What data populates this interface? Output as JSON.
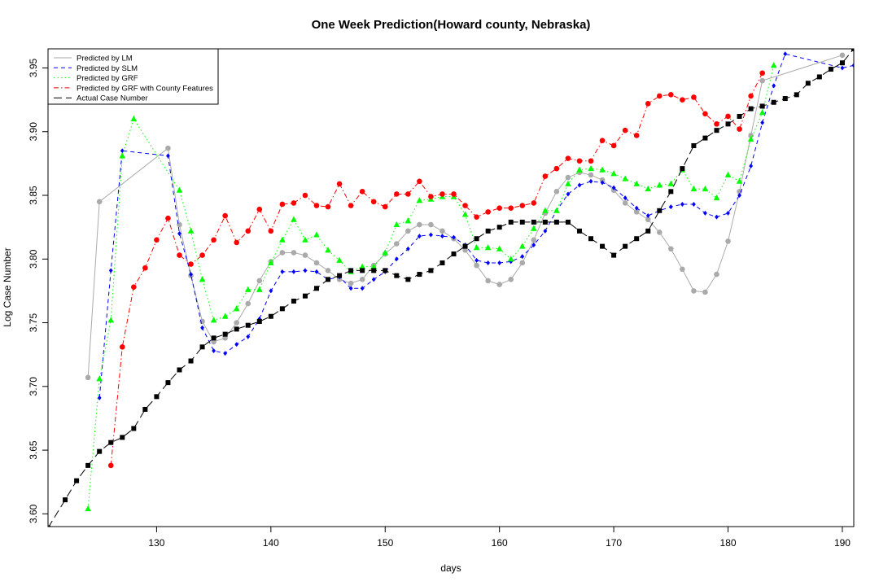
{
  "chart_data": {
    "type": "line",
    "title": "One Week Prediction(Howard county, Nebraska)",
    "xlabel": "days",
    "ylabel": "Log Case Number",
    "xlim": [
      120.5,
      191
    ],
    "ylim": [
      3.59,
      3.965
    ],
    "x_ticks": [
      130,
      140,
      150,
      160,
      170,
      180,
      190
    ],
    "y_ticks": [
      3.6,
      3.65,
      3.7,
      3.75,
      3.8,
      3.85,
      3.9,
      3.95
    ],
    "y_tick_labels": [
      "3.60",
      "3.65",
      "3.70",
      "3.75",
      "3.80",
      "3.85",
      "3.90",
      "3.95"
    ],
    "legend_position": "top-left",
    "grid": false,
    "series": [
      {
        "name": "Predicted by LM",
        "color": "#aaaaaa",
        "marker": "circle",
        "dash": "solid",
        "x": [
          124,
          125,
          131,
          132,
          133,
          134,
          135,
          136,
          137,
          138,
          139,
          140,
          141,
          142,
          143,
          144,
          145,
          146,
          147,
          148,
          149,
          150,
          151,
          152,
          153,
          154,
          155,
          156,
          157,
          158,
          159,
          160,
          161,
          162,
          163,
          164,
          165,
          166,
          167,
          168,
          169,
          170,
          171,
          172,
          173,
          174,
          175,
          176,
          177,
          178,
          179,
          180,
          181,
          182,
          183,
          190
        ],
        "y": [
          3.707,
          3.845,
          3.887,
          3.827,
          3.787,
          3.751,
          3.735,
          3.738,
          3.75,
          3.765,
          3.783,
          3.798,
          3.805,
          3.805,
          3.803,
          3.797,
          3.791,
          3.784,
          3.781,
          3.784,
          3.795,
          3.804,
          3.812,
          3.822,
          3.827,
          3.827,
          3.822,
          3.816,
          3.807,
          3.795,
          3.783,
          3.78,
          3.784,
          3.797,
          3.815,
          3.836,
          3.853,
          3.864,
          3.868,
          3.866,
          3.862,
          3.854,
          3.844,
          3.837,
          3.831,
          3.821,
          3.808,
          3.792,
          3.775,
          3.774,
          3.788,
          3.814,
          3.853,
          3.897,
          3.94,
          3.96
        ]
      },
      {
        "name": "Predicted by SLM",
        "color": "#0000ff",
        "marker": "diamond",
        "dash": "dashed",
        "x": [
          125,
          126,
          127,
          131,
          132,
          133,
          134,
          135,
          136,
          137,
          138,
          139,
          140,
          141,
          142,
          143,
          144,
          145,
          146,
          147,
          148,
          149,
          150,
          151,
          152,
          153,
          154,
          155,
          156,
          157,
          158,
          159,
          160,
          161,
          162,
          163,
          164,
          165,
          166,
          167,
          168,
          169,
          170,
          171,
          172,
          173,
          174,
          175,
          176,
          177,
          178,
          179,
          180,
          181,
          182,
          183,
          184,
          185,
          190,
          191
        ],
        "y": [
          3.691,
          3.791,
          3.885,
          3.881,
          3.82,
          3.788,
          3.746,
          3.728,
          3.726,
          3.733,
          3.739,
          3.753,
          3.775,
          3.79,
          3.79,
          3.791,
          3.79,
          3.784,
          3.786,
          3.777,
          3.777,
          3.784,
          3.79,
          3.8,
          3.808,
          3.818,
          3.819,
          3.818,
          3.817,
          3.811,
          3.799,
          3.797,
          3.797,
          3.798,
          3.802,
          3.811,
          3.822,
          3.838,
          3.851,
          3.858,
          3.861,
          3.86,
          3.856,
          3.848,
          3.84,
          3.834,
          3.838,
          3.841,
          3.843,
          3.843,
          3.836,
          3.833,
          3.836,
          3.85,
          3.873,
          3.907,
          3.936,
          3.961,
          3.95,
          3.952
        ]
      },
      {
        "name": "Predicted by GRF",
        "color": "#00ff00",
        "marker": "triangle",
        "dash": "dotted",
        "x": [
          124,
          125,
          126,
          127,
          128,
          132,
          133,
          134,
          135,
          136,
          137,
          138,
          139,
          140,
          141,
          142,
          143,
          144,
          145,
          146,
          147,
          148,
          149,
          150,
          151,
          152,
          153,
          154,
          155,
          156,
          157,
          158,
          159,
          160,
          161,
          162,
          163,
          164,
          165,
          166,
          167,
          168,
          169,
          170,
          171,
          172,
          173,
          174,
          175,
          176,
          177,
          178,
          179,
          180,
          181,
          182,
          183,
          184
        ],
        "y": [
          3.604,
          3.706,
          3.752,
          3.881,
          3.91,
          3.854,
          3.822,
          3.784,
          3.752,
          3.755,
          3.761,
          3.776,
          3.776,
          3.797,
          3.815,
          3.831,
          3.815,
          3.819,
          3.807,
          3.799,
          3.79,
          3.794,
          3.794,
          3.805,
          3.827,
          3.83,
          3.846,
          3.847,
          3.849,
          3.849,
          3.835,
          3.809,
          3.809,
          3.808,
          3.8,
          3.81,
          3.824,
          3.838,
          3.838,
          3.859,
          3.87,
          3.871,
          3.87,
          3.867,
          3.863,
          3.859,
          3.855,
          3.858,
          3.859,
          3.87,
          3.855,
          3.855,
          3.848,
          3.866,
          3.861,
          3.894,
          3.915,
          3.952
        ]
      },
      {
        "name": "Predicted by GRF with County Features",
        "color": "#ff0000",
        "marker": "circle",
        "dash": "dashdot",
        "x": [
          126,
          127,
          128,
          129,
          130,
          131,
          132,
          133,
          134,
          135,
          136,
          137,
          138,
          139,
          140,
          141,
          142,
          143,
          144,
          145,
          146,
          147,
          148,
          149,
          150,
          151,
          152,
          153,
          154,
          155,
          156,
          157,
          158,
          159,
          160,
          161,
          162,
          163,
          164,
          165,
          166,
          167,
          168,
          169,
          170,
          171,
          172,
          173,
          174,
          175,
          176,
          177,
          178,
          179,
          180,
          181,
          182,
          183
        ],
        "y": [
          3.638,
          3.731,
          3.778,
          3.793,
          3.815,
          3.832,
          3.803,
          3.796,
          3.803,
          3.815,
          3.834,
          3.813,
          3.822,
          3.839,
          3.822,
          3.843,
          3.844,
          3.85,
          3.842,
          3.841,
          3.859,
          3.842,
          3.853,
          3.845,
          3.841,
          3.851,
          3.851,
          3.861,
          3.849,
          3.851,
          3.851,
          3.842,
          3.833,
          3.837,
          3.84,
          3.84,
          3.842,
          3.844,
          3.865,
          3.871,
          3.879,
          3.877,
          3.877,
          3.893,
          3.889,
          3.901,
          3.897,
          3.922,
          3.928,
          3.929,
          3.925,
          3.927,
          3.914,
          3.906,
          3.912,
          3.902,
          3.928,
          3.946
        ]
      },
      {
        "name": "Actual Case Number",
        "color": "#000000",
        "marker": "square",
        "dash": "longdash",
        "x": [
          120.5,
          122,
          123,
          124,
          125,
          126,
          127,
          128,
          129,
          130,
          131,
          132,
          133,
          134,
          135,
          136,
          137,
          138,
          139,
          140,
          141,
          142,
          143,
          144,
          145,
          146,
          147,
          148,
          149,
          150,
          151,
          152,
          153,
          154,
          155,
          156,
          157,
          158,
          159,
          160,
          161,
          162,
          163,
          164,
          165,
          166,
          167,
          168,
          169,
          170,
          171,
          172,
          173,
          174,
          175,
          176,
          177,
          178,
          179,
          180,
          181,
          182,
          183,
          184,
          185,
          186,
          187,
          188,
          189,
          190,
          191
        ],
        "y": [
          3.589,
          3.611,
          3.626,
          3.638,
          3.649,
          3.656,
          3.66,
          3.667,
          3.682,
          3.692,
          3.703,
          3.713,
          3.72,
          3.731,
          3.738,
          3.741,
          3.745,
          3.748,
          3.751,
          3.755,
          3.761,
          3.767,
          3.771,
          3.777,
          3.784,
          3.787,
          3.791,
          3.791,
          3.791,
          3.791,
          3.787,
          3.784,
          3.788,
          3.791,
          3.797,
          3.804,
          3.81,
          3.816,
          3.822,
          3.825,
          3.829,
          3.829,
          3.829,
          3.829,
          3.829,
          3.829,
          3.822,
          3.816,
          3.81,
          3.803,
          3.81,
          3.816,
          3.822,
          3.838,
          3.853,
          3.871,
          3.889,
          3.895,
          3.901,
          3.906,
          3.912,
          3.918,
          3.92,
          3.923,
          3.926,
          3.929,
          3.938,
          3.943,
          3.949,
          3.954,
          3.965
        ]
      }
    ]
  }
}
